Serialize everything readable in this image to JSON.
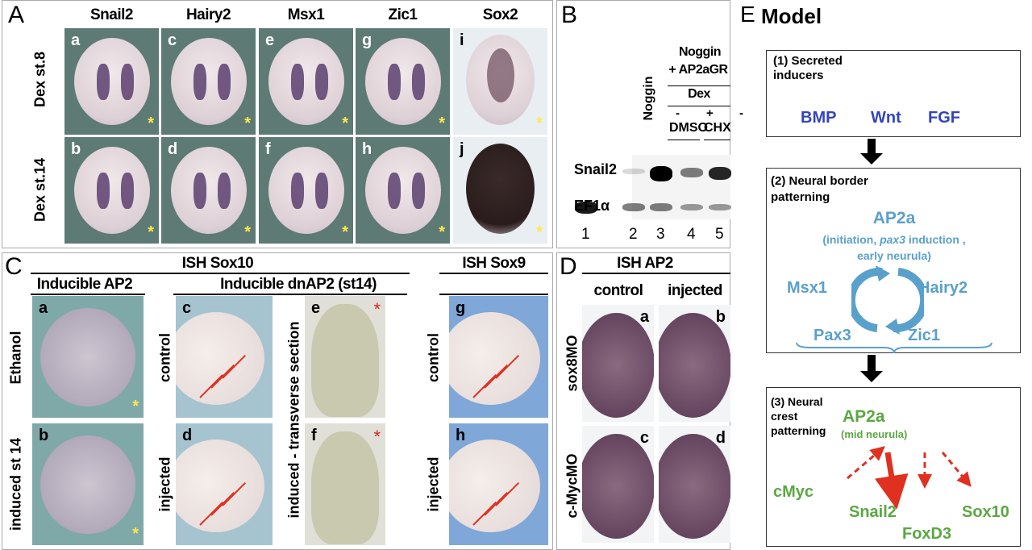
{
  "panelA": {
    "label": "A",
    "columns": [
      "Snail2",
      "Hairy2",
      "Msx1",
      "Zic1",
      "Sox2"
    ],
    "rows": [
      "Dex st.8",
      "Dex st.14"
    ],
    "images": [
      [
        "a",
        "c",
        "e",
        "g",
        "i"
      ],
      [
        "b",
        "d",
        "f",
        "h",
        "j"
      ]
    ]
  },
  "panelB": {
    "label": "B",
    "header1": "Noggin",
    "header2": "+ AP2aGR",
    "dex": "Dex",
    "signs": [
      "-",
      "+",
      "-",
      "+"
    ],
    "groups": [
      "DMSO",
      "CHX"
    ],
    "lane1": "Noggin",
    "rows": [
      "Snail2",
      "EF1α"
    ],
    "lanes": [
      "1",
      "2",
      "3",
      "4",
      "5"
    ]
  },
  "panelC": {
    "label": "C",
    "ish_sox10": "ISH Sox10",
    "ish_sox9": "ISH Sox9",
    "inducible_ap2": "Inducible AP2",
    "inducible_dnap2": "Inducible dnAP2 (st14)",
    "row_labels_a": [
      "Ethanol",
      "induced st 14"
    ],
    "row_labels_c": [
      "control",
      "injected"
    ],
    "section_label": "induced - transverse section",
    "row_labels_g": [
      "control",
      "injected"
    ],
    "letters": [
      "a",
      "b",
      "c",
      "d",
      "e",
      "f",
      "g",
      "h"
    ],
    "star": "*"
  },
  "panelD": {
    "label": "D",
    "title": "ISH AP2",
    "columns": [
      "control",
      "injected"
    ],
    "rows": [
      "sox8MO",
      "c-MycMO"
    ],
    "letters": [
      "a",
      "b",
      "c",
      "d"
    ]
  },
  "panelE": {
    "label": "E",
    "title": "Model",
    "box1": {
      "title": "(1) Secreted inducers",
      "items": [
        "BMP",
        "Wnt",
        "FGF"
      ]
    },
    "box2": {
      "title": "(2) Neural border patterning",
      "center": "AP2a",
      "note1": "(initiation, ",
      "note_italic": "pax3",
      "note2": " induction ,",
      "note3": "early neurula)",
      "left": "Msx1",
      "right": "Hairy2",
      "bottom_left": "Pax3",
      "bottom_right": "Zic1"
    },
    "box3": {
      "title": "(3) Neural crest patterning",
      "center": "AP2a",
      "note": "(mid neurula)",
      "items": [
        "cMyc",
        "Snail2",
        "FoxD3",
        "Sox10"
      ]
    },
    "colors": {
      "blue_inducers": "#3344bb",
      "neural_border": "#5aa0cc",
      "neural_crest": "#5aa842",
      "arrows_red": "#e03020"
    }
  }
}
